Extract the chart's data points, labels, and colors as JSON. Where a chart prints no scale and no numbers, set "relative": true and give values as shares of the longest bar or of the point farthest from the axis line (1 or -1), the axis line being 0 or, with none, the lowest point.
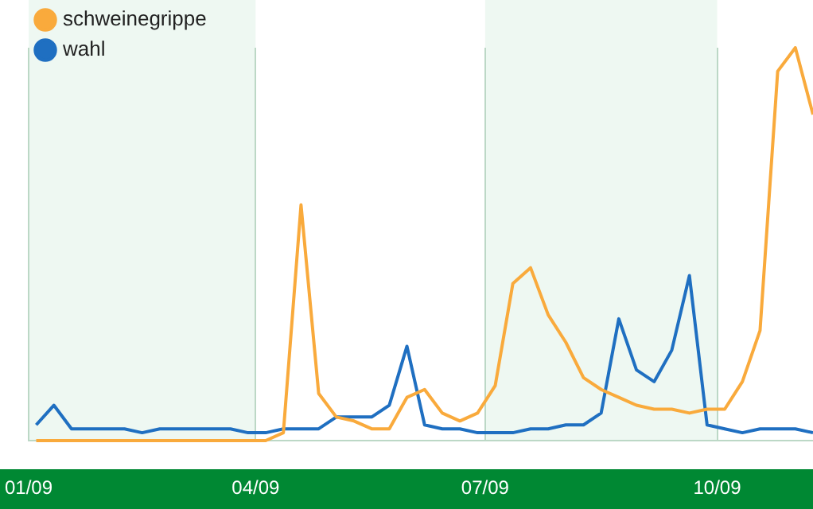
{
  "chart_data": {
    "type": "line",
    "relative": true,
    "legend": "top left",
    "grid": "x",
    "marker": "none",
    "line_style": "solid",
    "x": [
      "2009-01-04",
      "2009-01-11",
      "2009-01-18",
      "2009-01-25",
      "2009-02-01",
      "2009-02-08",
      "2009-02-15",
      "2009-02-22",
      "2009-03-01",
      "2009-03-08",
      "2009-03-15",
      "2009-03-22",
      "2009-03-29",
      "2009-04-05",
      "2009-04-12",
      "2009-04-19",
      "2009-04-26",
      "2009-05-03",
      "2009-05-10",
      "2009-05-17",
      "2009-05-24",
      "2009-05-31",
      "2009-06-07",
      "2009-06-14",
      "2009-06-21",
      "2009-06-28",
      "2009-07-05",
      "2009-07-12",
      "2009-07-19",
      "2009-07-26",
      "2009-08-02",
      "2009-08-09",
      "2009-08-16",
      "2009-08-23",
      "2009-08-30",
      "2009-09-06",
      "2009-09-13",
      "2009-09-20",
      "2009-09-27",
      "2009-10-04",
      "2009-10-11",
      "2009-10-18",
      "2009-10-25",
      "2009-11-01",
      "2009-11-08"
    ],
    "xticks": [
      {
        "value": "2009-01-01",
        "label": "01/09"
      },
      {
        "value": "2009-04-01",
        "label": "04/09"
      },
      {
        "value": "2009-07-01",
        "label": "07/09"
      },
      {
        "value": "2009-10-01",
        "label": "10/09"
      }
    ],
    "xlim": [
      "2009-01-01",
      "2009-11-08"
    ],
    "bands": [
      {
        "axis": "x",
        "from": "2009-01-01",
        "to": "2009-04-01",
        "color": "#eef8f2"
      },
      {
        "axis": "x",
        "from": "2009-07-01",
        "to": "2009-10-01",
        "color": "#eef8f2"
      }
    ],
    "series": [
      {
        "name": "schweinegrippe",
        "color": "#f9aa3c",
        "values": [
          0,
          0,
          0,
          0,
          0,
          0,
          0,
          0,
          0,
          0,
          0,
          0,
          0,
          0,
          0.02,
          0.6,
          0.12,
          0.06,
          0.05,
          0.03,
          0.03,
          0.11,
          0.13,
          0.07,
          0.05,
          0.07,
          0.14,
          0.4,
          0.44,
          0.32,
          0.25,
          0.16,
          0.13,
          0.11,
          0.09,
          0.08,
          0.08,
          0.07,
          0.08,
          0.08,
          0.15,
          0.28,
          0.94,
          1,
          0.83
        ]
      },
      {
        "name": "wahl",
        "color": "#1f6fc1",
        "values": [
          0.04,
          0.09,
          0.03,
          0.03,
          0.03,
          0.03,
          0.02,
          0.03,
          0.03,
          0.03,
          0.03,
          0.03,
          0.02,
          0.02,
          0.03,
          0.03,
          0.03,
          0.06,
          0.06,
          0.06,
          0.09,
          0.24,
          0.04,
          0.03,
          0.03,
          0.02,
          0.02,
          0.02,
          0.03,
          0.03,
          0.04,
          0.04,
          0.07,
          0.31,
          0.18,
          0.15,
          0.23,
          0.42,
          0.04,
          0.03,
          0.02,
          0.03,
          0.03,
          0.03,
          0.02
        ]
      }
    ]
  }
}
